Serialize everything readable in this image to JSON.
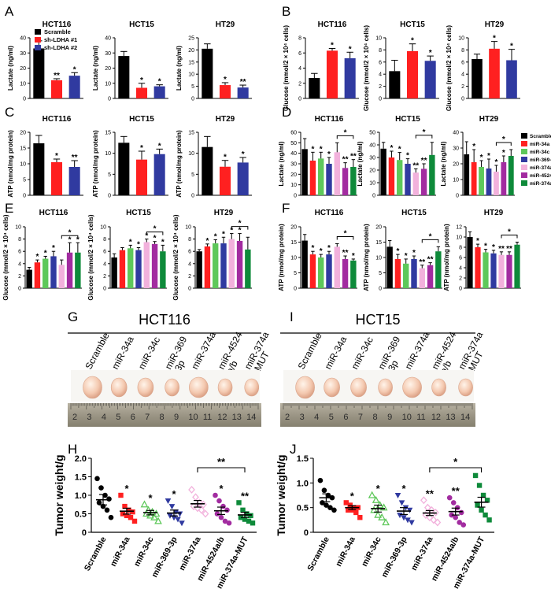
{
  "colors": {
    "black": "#000000",
    "red": "#ff2020",
    "blue": "#303aa0",
    "green": "#5ec85a",
    "pink": "#f2b1dc",
    "purple": "#a22ca0",
    "dkgreen": "#0e8a3a"
  },
  "legend_ab": {
    "items": [
      {
        "label": "Scramble",
        "color": "black"
      },
      {
        "label": "sh-LDHA #1",
        "color": "red"
      },
      {
        "label": "sh-LDHA #2",
        "color": "blue"
      }
    ]
  },
  "legend_df": {
    "items": [
      {
        "label": "Scramble",
        "color": "black"
      },
      {
        "label": "miR-34a",
        "color": "red"
      },
      {
        "label": "miR-34c",
        "color": "green"
      },
      {
        "label": "miR-369-3p",
        "color": "blue"
      },
      {
        "label": "miR-374a",
        "color": "pink"
      },
      {
        "label": "miR-4524a/b",
        "color": "purple"
      },
      {
        "label": "miR-374a-MUT",
        "color": "dkgreen"
      }
    ]
  },
  "chart_data": [
    {
      "panel": "A",
      "type": "bar",
      "title": "HCT116",
      "ylabel": "Lactate (ng/ml)",
      "ylim": [
        0,
        40
      ],
      "ticks": [
        0,
        10,
        20,
        30,
        40
      ],
      "colors": [
        "black",
        "red",
        "blue"
      ],
      "values": [
        33,
        12,
        15
      ],
      "errors": [
        5,
        1,
        2
      ],
      "stars": [
        "",
        "**",
        "*"
      ]
    },
    {
      "panel": "A",
      "type": "bar",
      "title": "HCT15",
      "ylabel": "Lactate (ng/ml)",
      "ylim": [
        0,
        40
      ],
      "ticks": [
        0,
        10,
        20,
        30,
        40
      ],
      "colors": [
        "black",
        "red",
        "blue"
      ],
      "values": [
        28,
        7,
        8
      ],
      "errors": [
        3,
        3,
        1
      ],
      "stars": [
        "",
        "*",
        "*"
      ]
    },
    {
      "panel": "A",
      "type": "bar",
      "title": "HT29",
      "ylabel": "Lactate (ng/ml)",
      "ylim": [
        0,
        25
      ],
      "ticks": [
        0,
        5,
        10,
        15,
        20,
        25
      ],
      "colors": [
        "black",
        "red",
        "blue"
      ],
      "values": [
        20.5,
        5.5,
        4.5
      ],
      "errors": [
        2,
        1,
        1
      ],
      "stars": [
        "",
        "*",
        "**"
      ]
    },
    {
      "panel": "B",
      "type": "bar",
      "title": "HCT116",
      "ylabel": "Glucose (mmol/2 × 10⁴ cells)",
      "ylim": [
        0,
        8
      ],
      "ticks": [
        0,
        2,
        4,
        6,
        8
      ],
      "colors": [
        "black",
        "red",
        "blue"
      ],
      "values": [
        2.7,
        6.3,
        5.3
      ],
      "errors": [
        0.6,
        0.3,
        0.8
      ],
      "stars": [
        "",
        "*",
        "*"
      ]
    },
    {
      "panel": "B",
      "type": "bar",
      "title": "HCT15",
      "ylabel": "Glucose (mmol/2 × 10⁴ cells)",
      "ylim": [
        0,
        10
      ],
      "ticks": [
        0,
        2,
        4,
        6,
        8,
        10
      ],
      "colors": [
        "black",
        "red",
        "blue"
      ],
      "values": [
        4.5,
        7.8,
        6.2
      ],
      "errors": [
        1.8,
        1.2,
        0.8
      ],
      "stars": [
        "",
        "*",
        "*"
      ]
    },
    {
      "panel": "B",
      "type": "bar",
      "title": "HT29",
      "ylabel": "Glucose (mmol/2 × 10⁴ cells)",
      "ylim": [
        0,
        10
      ],
      "ticks": [
        0,
        2,
        4,
        6,
        8,
        10
      ],
      "colors": [
        "black",
        "red",
        "blue"
      ],
      "values": [
        6.5,
        8.2,
        6.3
      ],
      "errors": [
        0.8,
        1.2,
        1.8
      ],
      "stars": [
        "",
        "*",
        "*"
      ]
    },
    {
      "panel": "C",
      "type": "bar",
      "title": "HCT116",
      "ylabel": "ATP (nmol/mg protein)",
      "ylim": [
        0,
        20
      ],
      "ticks": [
        0,
        5,
        10,
        15,
        20
      ],
      "colors": [
        "black",
        "red",
        "blue"
      ],
      "values": [
        16.5,
        10.5,
        9
      ],
      "errors": [
        2.5,
        1,
        2
      ],
      "stars": [
        "",
        "*",
        "**"
      ]
    },
    {
      "panel": "C",
      "type": "bar",
      "title": "HCT15",
      "ylabel": "ATP (nmol/mg protein)",
      "ylim": [
        0,
        15
      ],
      "ticks": [
        0,
        5,
        10,
        15
      ],
      "colors": [
        "black",
        "red",
        "blue"
      ],
      "values": [
        12.5,
        8.5,
        9.8
      ],
      "errors": [
        1.5,
        2,
        1.2
      ],
      "stars": [
        "",
        "*",
        "*"
      ]
    },
    {
      "panel": "C",
      "type": "bar",
      "title": "HT29",
      "ylabel": "ATP (nmol/mg protein)",
      "ylim": [
        0,
        15
      ],
      "ticks": [
        0,
        5,
        10,
        15
      ],
      "colors": [
        "black",
        "red",
        "blue"
      ],
      "values": [
        11.5,
        6.8,
        7.8
      ],
      "errors": [
        2.5,
        1.5,
        1.2
      ],
      "stars": [
        "",
        "*",
        "*"
      ]
    },
    {
      "panel": "D",
      "type": "bar",
      "title": "HCT116",
      "ylabel": "Lactate (ng/ml)",
      "ylim": [
        0,
        60
      ],
      "ticks": [
        0,
        10,
        20,
        30,
        40,
        50,
        60
      ],
      "colors": [
        "black",
        "red",
        "green",
        "blue",
        "pink",
        "purple",
        "dkgreen"
      ],
      "values": [
        44,
        33,
        35,
        30,
        41,
        26,
        27
      ],
      "errors": [
        10,
        8,
        6,
        6,
        9,
        5,
        7
      ],
      "stars": [
        "",
        "*",
        "*",
        "*",
        "",
        "**",
        "**"
      ],
      "bracket": [
        4,
        6
      ]
    },
    {
      "panel": "D",
      "type": "bar",
      "title": "HCT15",
      "ylabel": "Lactate (ng/ml)",
      "ylim": [
        0,
        50
      ],
      "ticks": [
        0,
        10,
        20,
        30,
        40,
        50
      ],
      "colors": [
        "black",
        "red",
        "green",
        "blue",
        "pink",
        "purple",
        "dkgreen"
      ],
      "values": [
        37,
        30,
        28,
        25,
        18,
        21,
        32
      ],
      "errors": [
        5,
        5,
        6,
        4,
        3,
        4,
        10
      ],
      "stars": [
        "",
        "*",
        "*",
        "*",
        "**",
        "**",
        ""
      ],
      "bracket": [
        4,
        6
      ]
    },
    {
      "panel": "D",
      "type": "bar",
      "title": "HT29",
      "ylabel": "Lactate (ng/ml)",
      "ylim": [
        0,
        40
      ],
      "ticks": [
        0,
        10,
        20,
        30,
        40
      ],
      "colors": [
        "black",
        "red",
        "green",
        "blue",
        "pink",
        "purple",
        "dkgreen"
      ],
      "values": [
        26,
        21,
        18,
        17,
        15,
        21,
        25
      ],
      "errors": [
        8,
        8,
        4,
        6,
        4,
        4,
        4
      ],
      "stars": [
        "",
        "*",
        "*",
        "*",
        "*",
        "*",
        ""
      ],
      "bracket": [
        4,
        6
      ]
    },
    {
      "panel": "E",
      "type": "bar",
      "title": "HCT116",
      "ylabel": "Glucose (mmol/2 × 10⁴ cells)",
      "ylim": [
        0,
        10
      ],
      "ticks": [
        0,
        2,
        4,
        6,
        8,
        10
      ],
      "colors": [
        "black",
        "red",
        "green",
        "blue",
        "pink",
        "purple",
        "dkgreen"
      ],
      "values": [
        3,
        4.2,
        4.8,
        5.2,
        3.8,
        5.8,
        5.8
      ],
      "errors": [
        0.4,
        0.4,
        0.4,
        0.8,
        0.8,
        1.6,
        1.6
      ],
      "stars": [
        "",
        "*",
        "*",
        "*",
        "",
        "*",
        "*"
      ],
      "bracket": [
        4,
        6
      ]
    },
    {
      "panel": "E",
      "type": "bar",
      "title": "HCT15",
      "ylabel": "Glucose (mmol/2 × 10⁴ cells)",
      "ylim": [
        0,
        10
      ],
      "ticks": [
        0,
        2,
        4,
        6,
        8,
        10
      ],
      "colors": [
        "black",
        "red",
        "green",
        "blue",
        "pink",
        "purple",
        "dkgreen"
      ],
      "values": [
        5,
        6.2,
        6.5,
        6.2,
        7.5,
        7.2,
        6
      ],
      "errors": [
        0.6,
        0.4,
        0.5,
        0.4,
        0.5,
        0.4,
        1
      ],
      "stars": [
        "",
        "",
        "*",
        "*",
        "*",
        "*",
        "*"
      ],
      "bracket": [
        4,
        6
      ]
    },
    {
      "panel": "E",
      "type": "bar",
      "title": "HT29",
      "ylabel": "Glucose (mmol/2 × 10⁴ cells)",
      "ylim": [
        0,
        10
      ],
      "ticks": [
        0,
        2,
        4,
        6,
        8,
        10
      ],
      "colors": [
        "black",
        "red",
        "green",
        "blue",
        "pink",
        "purple",
        "dkgreen"
      ],
      "values": [
        6,
        6.8,
        7.3,
        7.3,
        8,
        7.7,
        6.3
      ],
      "errors": [
        0.3,
        0.4,
        0.6,
        1,
        0.9,
        1.2,
        2
      ],
      "stars": [
        "",
        "*",
        "*",
        "*",
        "*",
        "*",
        ""
      ],
      "bracket": [
        4,
        6
      ]
    },
    {
      "panel": "F",
      "type": "bar",
      "title": "HCT116",
      "ylabel": "ATP (nmol/mg protein)",
      "ylim": [
        0,
        20
      ],
      "ticks": [
        0,
        5,
        10,
        15,
        20
      ],
      "colors": [
        "black",
        "red",
        "green",
        "blue",
        "pink",
        "purple",
        "dkgreen"
      ],
      "values": [
        15.5,
        11,
        10,
        11,
        13.5,
        9.5,
        9
      ],
      "errors": [
        2,
        1,
        1,
        1,
        1,
        1,
        0.5
      ],
      "stars": [
        "",
        "*",
        "*",
        "*",
        "",
        "**",
        "*"
      ],
      "bracket": [
        4,
        6
      ]
    },
    {
      "panel": "F",
      "type": "bar",
      "title": "HCT15",
      "ylabel": "ATP (nmol/mg protein)",
      "ylim": [
        0,
        20
      ],
      "ticks": [
        0,
        5,
        10,
        15,
        20
      ],
      "colors": [
        "black",
        "red",
        "green",
        "blue",
        "pink",
        "purple",
        "dkgreen"
      ],
      "values": [
        13.5,
        9.5,
        8,
        9.5,
        6.5,
        7.5,
        12
      ],
      "errors": [
        2,
        1.5,
        1.5,
        1,
        1,
        0.8,
        1.5
      ],
      "stars": [
        "",
        "*",
        "*",
        "*",
        "**",
        "**",
        ""
      ],
      "bracket": [
        4,
        6
      ]
    },
    {
      "panel": "F",
      "type": "bar",
      "title": "HT29",
      "ylabel": "ATP (nmol/mg protein)",
      "ylim": [
        0,
        12
      ],
      "ticks": [
        0,
        2,
        4,
        6,
        8,
        10,
        12
      ],
      "colors": [
        "black",
        "red",
        "green",
        "blue",
        "pink",
        "purple",
        "dkgreen"
      ],
      "values": [
        10,
        8,
        7,
        6.8,
        6.5,
        6.5,
        8.5
      ],
      "errors": [
        1,
        0.6,
        0.6,
        0.6,
        0.6,
        0.6,
        0.5
      ],
      "stars": [
        "",
        "*",
        "*",
        "*",
        "**",
        "**",
        ""
      ],
      "bracket": [
        4,
        6
      ]
    },
    {
      "panel": "H",
      "type": "scatter",
      "ylabel": "Tumor weight/g",
      "ylim": [
        0,
        2
      ],
      "ticks": [
        0,
        0.5,
        1.0,
        1.5,
        2.0
      ],
      "categories": [
        "Scramble",
        "miR-34a",
        "miR-34c",
        "miR-369-3p",
        "miR-374a",
        "miR-4524a/b",
        "miR-374a-MUT"
      ],
      "colors": [
        "black",
        "red",
        "green",
        "blue",
        "pink",
        "purple",
        "dkgreen"
      ],
      "markers": [
        "circle",
        "square",
        "triangle",
        "tri-down",
        "diamond",
        "circle",
        "square"
      ],
      "means": [
        0.88,
        0.57,
        0.53,
        0.52,
        0.77,
        0.58,
        0.47
      ],
      "sems": [
        0.14,
        0.08,
        0.06,
        0.08,
        0.09,
        0.1,
        0.07
      ],
      "stars": [
        "",
        "*",
        "*",
        "*",
        "",
        "*",
        "**"
      ],
      "bracket": [
        4,
        6
      ],
      "bracket_star": "**",
      "points": [
        [
          1.45,
          1.2,
          1.0,
          0.9,
          0.8,
          0.7,
          0.6,
          0.4
        ],
        [
          1.0,
          0.7,
          0.6,
          0.55,
          0.5,
          0.45,
          0.4,
          0.3
        ],
        [
          0.75,
          0.6,
          0.55,
          0.5,
          0.5,
          0.45,
          0.4,
          0.3
        ],
        [
          0.85,
          0.7,
          0.55,
          0.5,
          0.45,
          0.4,
          0.35,
          0.25
        ],
        [
          1.15,
          0.95,
          0.8,
          0.75,
          0.7,
          0.65,
          0.6,
          0.5
        ],
        [
          1.0,
          0.85,
          0.7,
          0.6,
          0.5,
          0.4,
          0.3,
          0.25
        ],
        [
          0.8,
          0.6,
          0.5,
          0.45,
          0.4,
          0.35,
          0.3,
          0.25
        ]
      ]
    },
    {
      "panel": "J",
      "type": "scatter",
      "ylabel": "Tumor weight/g",
      "ylim": [
        0,
        1.5
      ],
      "ticks": [
        0,
        0.5,
        1.0,
        1.5
      ],
      "categories": [
        "Scramble",
        "miR-34a",
        "miR-34c",
        "miR-369-3p",
        "miR-374a",
        "miR-4524a/b",
        "miR-374a-MUT"
      ],
      "colors": [
        "black",
        "red",
        "green",
        "blue",
        "pink",
        "purple",
        "dkgreen"
      ],
      "markers": [
        "circle",
        "square",
        "triangle",
        "tri-down",
        "diamond",
        "circle",
        "square"
      ],
      "means": [
        0.7,
        0.5,
        0.48,
        0.43,
        0.39,
        0.42,
        0.61
      ],
      "sems": [
        0.08,
        0.04,
        0.07,
        0.07,
        0.05,
        0.07,
        0.1
      ],
      "stars": [
        "",
        "*",
        "*",
        "*",
        "**",
        "**",
        ""
      ],
      "bracket": [
        4,
        6
      ],
      "bracket_star": "*",
      "points": [
        [
          1.05,
          0.85,
          0.75,
          0.7,
          0.6,
          0.55,
          0.5,
          0.45
        ],
        [
          0.6,
          0.55,
          0.5,
          0.5,
          0.45,
          0.45,
          0.4,
          0.3
        ],
        [
          0.75,
          0.65,
          0.55,
          0.5,
          0.45,
          0.35,
          0.3,
          0.2
        ],
        [
          0.75,
          0.6,
          0.5,
          0.45,
          0.35,
          0.3,
          0.25,
          0.2
        ],
        [
          0.65,
          0.5,
          0.45,
          0.4,
          0.35,
          0.3,
          0.25,
          0.2
        ],
        [
          0.7,
          0.6,
          0.5,
          0.4,
          0.35,
          0.3,
          0.2,
          0.15
        ],
        [
          1.15,
          0.95,
          0.75,
          0.65,
          0.55,
          0.45,
          0.35,
          0.25
        ]
      ]
    }
  ],
  "photos": {
    "G": {
      "title": "HCT116",
      "labels": [
        "Scramble",
        "miR-34a",
        "miR-34c",
        "miR-369\n-3p",
        "miR-374a",
        "miR-4524\na/b",
        "miR-374a\n-MUT"
      ],
      "ruler": [
        "2",
        "3",
        "4",
        "5",
        "6",
        "7",
        "8",
        "9",
        "10",
        "11",
        "12",
        "13",
        "14"
      ]
    },
    "I": {
      "title": "HCT15",
      "labels": [
        "Scramble",
        "miR-34a",
        "miR-34c",
        "miR-369\n-3p",
        "miR-374a",
        "miR-4524\na/b",
        "miR-374a\n-MUT"
      ],
      "ruler": [
        "2",
        "3",
        "4",
        "5",
        "6",
        "7",
        "8",
        "9",
        "10",
        "11",
        "12",
        "13",
        "14"
      ]
    }
  },
  "panel_letters": [
    "A",
    "B",
    "C",
    "D",
    "E",
    "F",
    "G",
    "I",
    "H",
    "J"
  ]
}
